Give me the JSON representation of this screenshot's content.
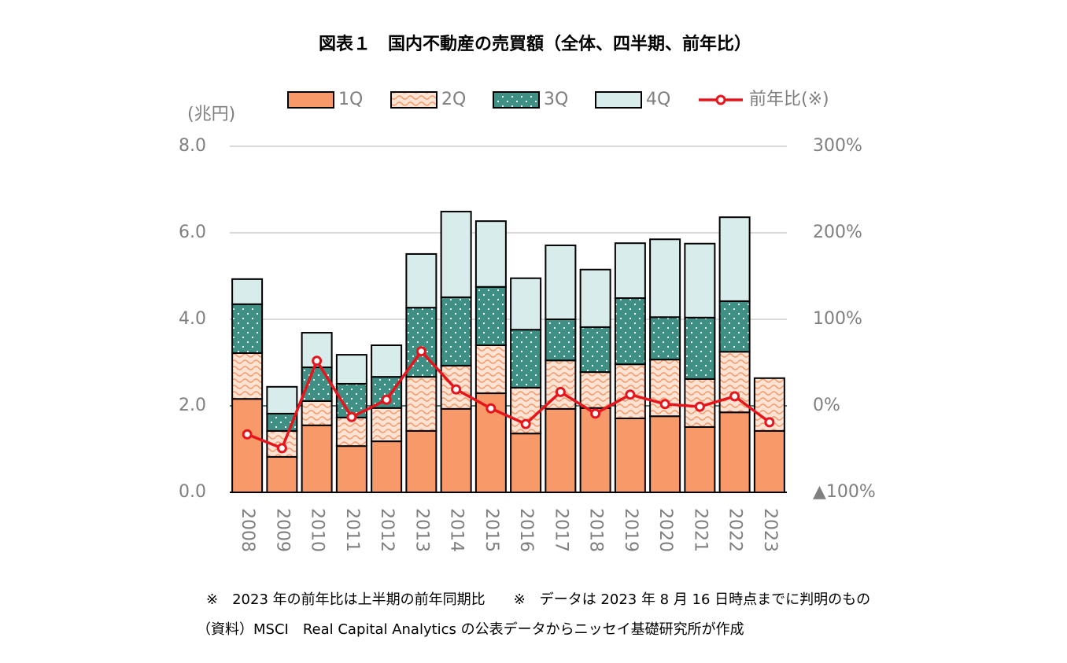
{
  "chart_data": {
    "type": "stacked_bar_line",
    "title": "図表１　国内不動産の売買額（全体、四半期、前年比）",
    "y_axis_label": "(兆円)",
    "categories": [
      "2008",
      "2009",
      "2010",
      "2011",
      "2012",
      "2013",
      "2014",
      "2015",
      "2016",
      "2017",
      "2018",
      "2019",
      "2020",
      "2021",
      "2022",
      "2023"
    ],
    "series": [
      {
        "name": "1Q",
        "color": "#f8996a",
        "pattern": "solid",
        "values": [
          2.16,
          0.82,
          1.55,
          1.07,
          1.18,
          1.42,
          1.93,
          2.29,
          1.36,
          1.93,
          1.95,
          1.71,
          1.76,
          1.51,
          1.85,
          1.42
        ]
      },
      {
        "name": "2Q",
        "color": "#fde3d3",
        "pattern": "wave",
        "values": [
          1.06,
          0.6,
          0.56,
          0.66,
          0.77,
          1.25,
          1.0,
          1.11,
          1.06,
          1.12,
          0.83,
          1.25,
          1.31,
          1.11,
          1.4,
          1.22
        ]
      },
      {
        "name": "3Q",
        "color": "#3f8f85",
        "pattern": "dots",
        "values": [
          1.13,
          0.4,
          0.78,
          0.78,
          0.72,
          1.6,
          1.58,
          1.35,
          1.34,
          0.95,
          1.04,
          1.53,
          0.98,
          1.42,
          1.17,
          null
        ]
      },
      {
        "name": "4Q",
        "color": "#d9ecec",
        "pattern": "solid",
        "values": [
          0.58,
          0.62,
          0.8,
          0.67,
          0.73,
          1.24,
          1.98,
          1.52,
          1.19,
          1.71,
          1.33,
          1.27,
          1.8,
          1.71,
          1.94,
          null
        ]
      },
      {
        "name": "前年比(※)",
        "color": "#e8141b",
        "axis": "y2",
        "kind": "line",
        "values": [
          -33,
          -49,
          52,
          -13,
          7,
          63,
          19,
          -3,
          -21,
          16,
          -9,
          13,
          2,
          -1,
          11,
          -19
        ]
      }
    ],
    "ylim": [
      0,
      8
    ],
    "yticks": [
      {
        "value": 0,
        "label": "0.0"
      },
      {
        "value": 2,
        "label": "2.0"
      },
      {
        "value": 4,
        "label": "4.0"
      },
      {
        "value": 6,
        "label": "6.0"
      },
      {
        "value": 8,
        "label": "8.0"
      }
    ],
    "y2lim": [
      -100,
      300
    ],
    "y2ticks": [
      {
        "value": -100,
        "label": "▲100%"
      },
      {
        "value": 0,
        "label": "0%"
      },
      {
        "value": 100,
        "label": "100%"
      },
      {
        "value": 200,
        "label": "200%"
      },
      {
        "value": 300,
        "label": "300%"
      }
    ],
    "grid": true,
    "legend": "top",
    "notes": [
      "※　2023 年の前年比は上半期の前年同期比　　※　データは 2023 年 8 月 16 日時点までに判明のもの",
      "（資料）MSCI　Real Capital Analytics の公表データからニッセイ基礎研究所が作成"
    ]
  }
}
